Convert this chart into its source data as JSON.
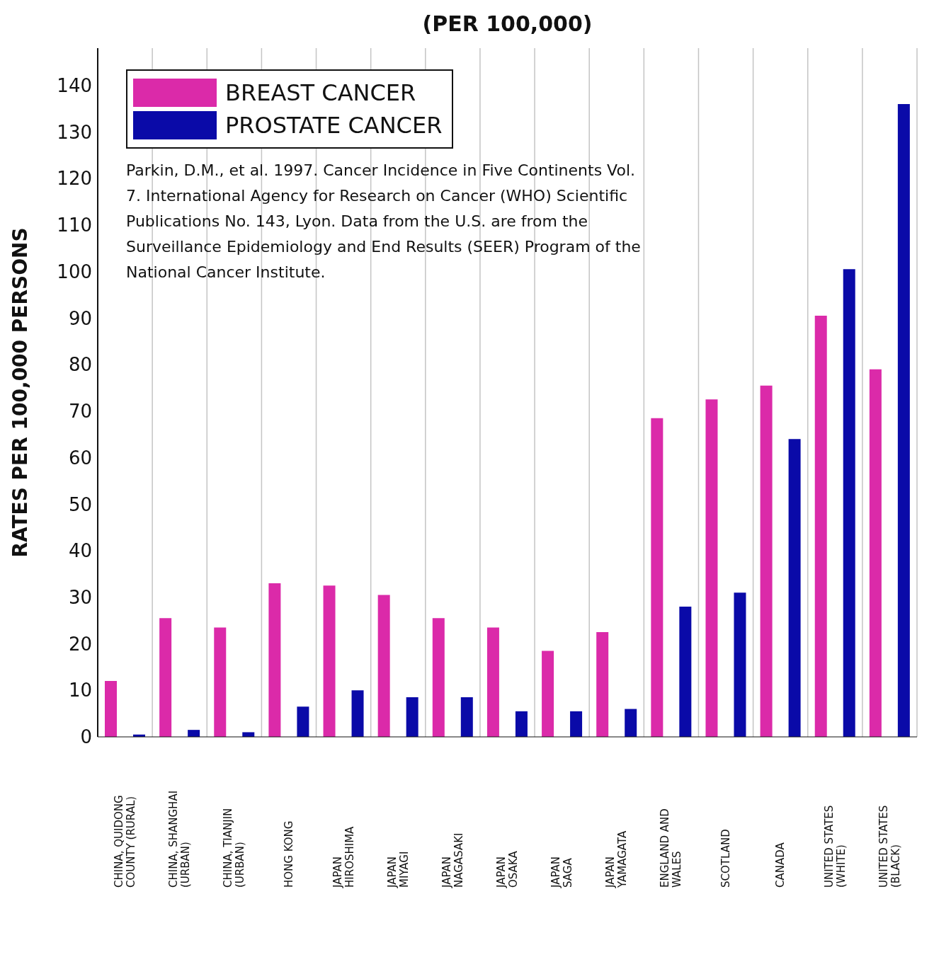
{
  "chart_data": {
    "type": "bar",
    "title": "(PER 100,000)",
    "ylabel": "RATES PER 100,000 PERSONS",
    "categories": [
      "CHINA, QUIDONG\nCOUNTY (RURAL)",
      "CHINA, SHANGHAI\n(URBAN)",
      "CHINA, TIANJIN\n(URBAN)",
      "HONG KONG",
      "JAPAN\nHIROSHIMA",
      "JAPAN\nMIYAGI",
      "JAPAN\nNAGASAKI",
      "JAPAN\nOSAKA",
      "JAPAN\nSAGA",
      "JAPAN\nYAMAGATA",
      "ENGLAND AND\nWALES",
      "SCOTLAND",
      "CANADA",
      "UNITED STATES\n(WHITE)",
      "UNITED STATES\n(BLACK)"
    ],
    "series": [
      {
        "name": "BREAST CANCER",
        "color": "#db2aa9",
        "values": [
          12,
          25.5,
          23.5,
          33,
          32.5,
          30.5,
          25.5,
          23.5,
          18.5,
          22.5,
          68.5,
          72.5,
          75.5,
          90.5,
          79
        ]
      },
      {
        "name": "PROSTATE CANCER",
        "color": "#0a0aa8",
        "values": [
          0.5,
          1.5,
          1,
          6.5,
          10,
          8.5,
          8.5,
          5.5,
          5.5,
          6,
          28,
          31,
          64,
          100.5,
          136
        ]
      }
    ],
    "ylim": [
      0,
      148
    ],
    "yticks": [
      0,
      10,
      20,
      30,
      40,
      50,
      60,
      70,
      80,
      90,
      100,
      110,
      120,
      130,
      140
    ],
    "grid": "x",
    "legend": "top left",
    "annotations": [
      "Parkin, D.M., et al. 1997. Cancer Incidence in Five Continents Vol. 7. International Agency for Research on Cancer (WHO) Scientific Publications No. 143, Lyon. Data from the U.S. are from the Surveillance Epidemiology and End Results (SEER) Program of the National Cancer Institute."
    ]
  }
}
